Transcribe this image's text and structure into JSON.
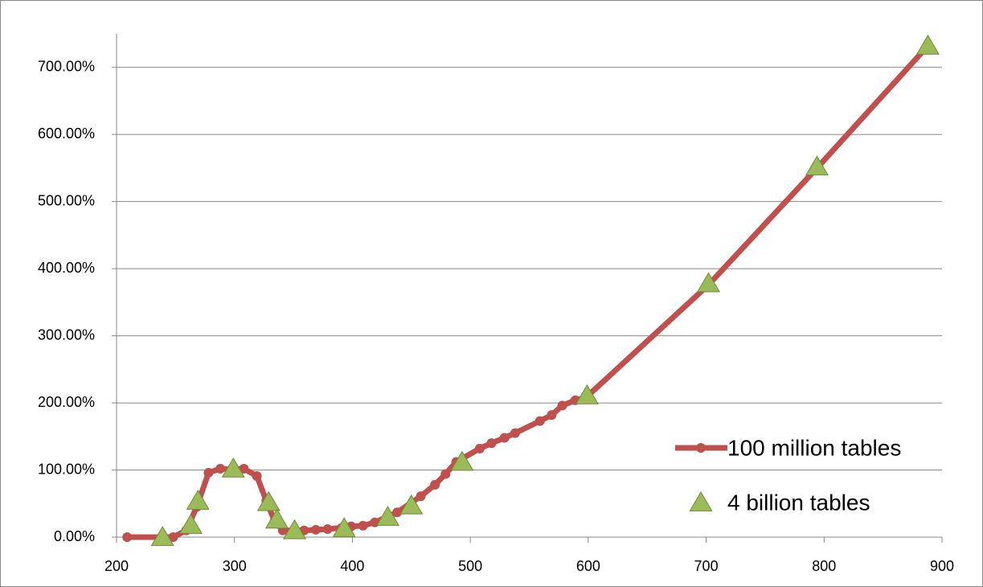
{
  "chart_data": {
    "type": "line",
    "xlim": [
      200,
      900
    ],
    "xticks": [
      200,
      300,
      400,
      500,
      600,
      700,
      800,
      900
    ],
    "ylim": [
      0,
      750
    ],
    "yticks": [
      {
        "value": 0,
        "label": "0.00%"
      },
      {
        "value": 100,
        "label": "100.00%"
      },
      {
        "value": 200,
        "label": "200.00%"
      },
      {
        "value": 300,
        "label": "300.00%"
      },
      {
        "value": 400,
        "label": "400.00%"
      },
      {
        "value": 500,
        "label": "500.00%"
      },
      {
        "value": 600,
        "label": "600.00%"
      },
      {
        "value": 700,
        "label": "700.00%"
      }
    ],
    "grid": true,
    "legend": "lower right",
    "series": [
      {
        "name": "100 million tables",
        "color": "#c0504d",
        "style": "line-markers",
        "x": [
          209,
          248,
          259,
          268,
          278,
          288,
          298,
          308,
          319,
          327,
          334,
          341,
          359,
          369,
          379,
          391,
          399,
          409,
          419,
          438,
          458,
          470,
          479,
          488,
          508,
          518,
          529,
          538,
          559,
          569,
          578,
          589,
          598,
          702,
          794,
          888
        ],
        "values": [
          0,
          0,
          10,
          45,
          96,
          102,
          101,
          102,
          91,
          54,
          24,
          10,
          10,
          11,
          12,
          14,
          16,
          17,
          22,
          37,
          61,
          78,
          94,
          112,
          132,
          140,
          148,
          155,
          173,
          182,
          196,
          204,
          208,
          376,
          550,
          732
        ]
      },
      {
        "name": "4 billion tables",
        "color": "#9bbb59",
        "style": "triangles",
        "x": [
          239,
          263,
          269,
          299,
          329,
          336,
          351,
          393,
          430,
          450,
          493,
          599,
          702,
          794,
          888
        ],
        "values": [
          0,
          18,
          54,
          102,
          52,
          26,
          10,
          13,
          30,
          47,
          112,
          211,
          378,
          552,
          732
        ]
      }
    ]
  }
}
